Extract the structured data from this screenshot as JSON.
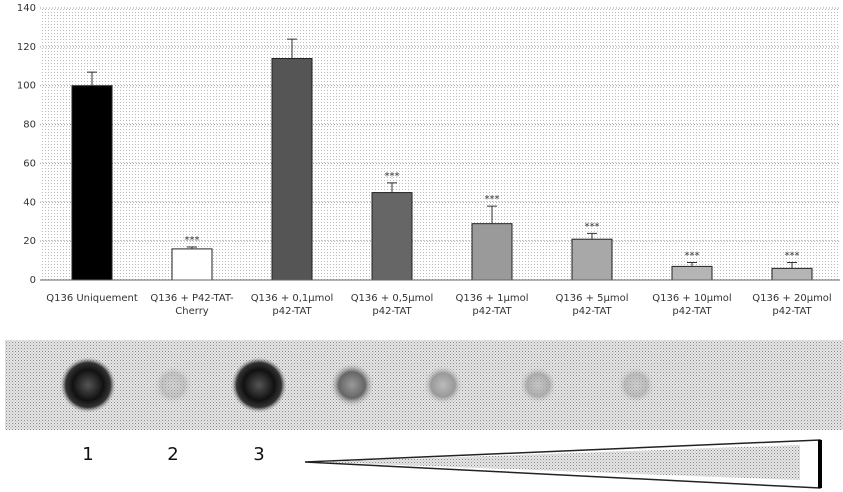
{
  "chart_data": {
    "type": "bar",
    "categories": [
      "Q136 Uniquement",
      "Q136 + P42-TAT-Cherry",
      "Q136 + 0,1µmol p42-TAT",
      "Q136 + 0,5µmol p42-TAT",
      "Q136 + 1µmol p42-TAT",
      "Q136 + 5µmol p42-TAT",
      "Q136 + 10µmol p42-TAT",
      "Q136 + 20µmol p42-TAT"
    ],
    "values": [
      100,
      16,
      114,
      45,
      29,
      21,
      7,
      6
    ],
    "errors": [
      7,
      1,
      10,
      5,
      9,
      3,
      2,
      3
    ],
    "significance": [
      null,
      "***",
      null,
      "***",
      "***",
      "***",
      "***",
      "***"
    ],
    "colors": [
      "#000000",
      "#ffffff",
      "#555555",
      "#666666",
      "#9a9a9a",
      "#a8a8a8",
      "#b5b5b5",
      "#b5b5b5"
    ],
    "ylim": [
      0,
      140
    ],
    "yticks": [
      0,
      20,
      40,
      60,
      80,
      100,
      120,
      140
    ],
    "grid": true
  },
  "blot": {
    "lane_labels": [
      "1",
      "2",
      "3"
    ]
  }
}
